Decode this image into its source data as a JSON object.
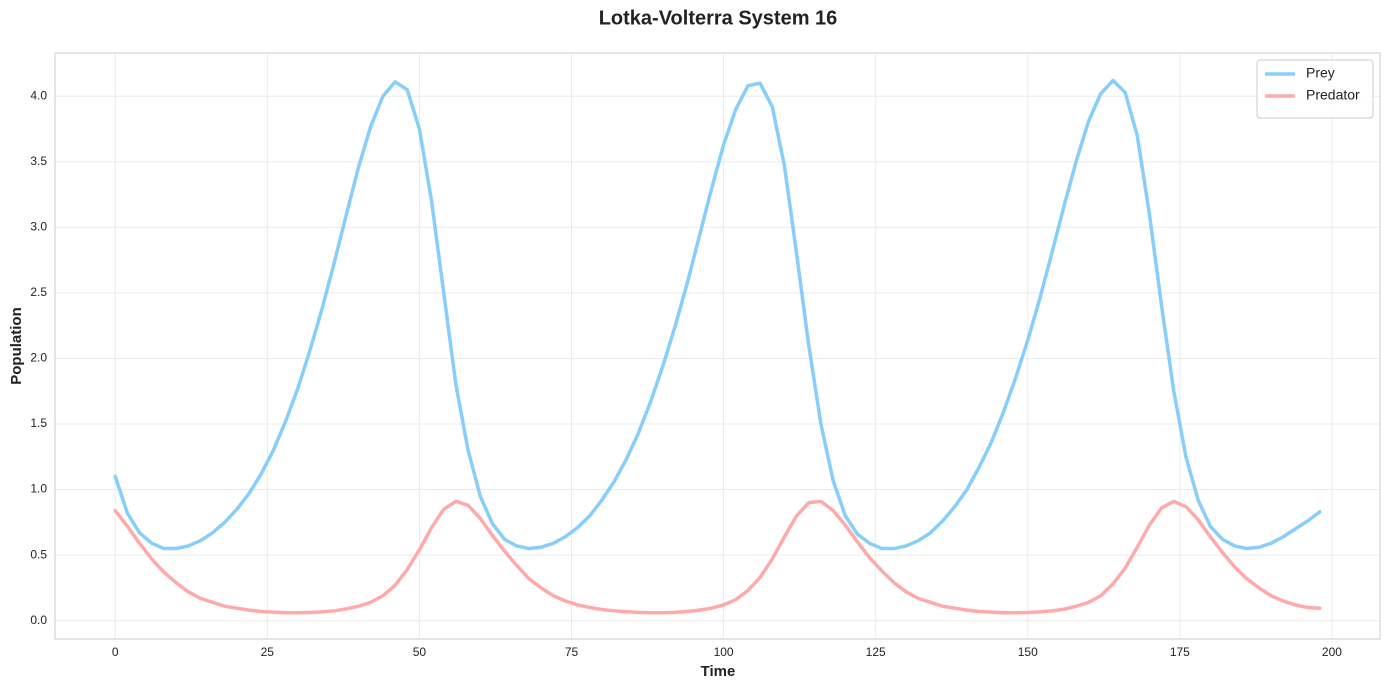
{
  "chart_data": {
    "type": "line",
    "title": "Lotka-Volterra System 16",
    "xlabel": "Time",
    "ylabel": "Population",
    "x": [
      0,
      2,
      4,
      6,
      8,
      10,
      12,
      14,
      16,
      18,
      20,
      22,
      24,
      26,
      28,
      30,
      32,
      34,
      36,
      38,
      40,
      42,
      44,
      46,
      48,
      50,
      52,
      54,
      56,
      58,
      60,
      62,
      64,
      66,
      68,
      70,
      72,
      74,
      76,
      78,
      80,
      82,
      84,
      86,
      88,
      90,
      92,
      94,
      96,
      98,
      100,
      102,
      104,
      106,
      108,
      110,
      112,
      114,
      116,
      118,
      120,
      122,
      124,
      126,
      128,
      130,
      132,
      134,
      136,
      138,
      140,
      142,
      144,
      146,
      148,
      150,
      152,
      154,
      156,
      158,
      160,
      162,
      164,
      166,
      168,
      170,
      172,
      174,
      176,
      178,
      180,
      182,
      184,
      186,
      188,
      190,
      192,
      194,
      196,
      198
    ],
    "series": [
      {
        "name": "Prey",
        "color": "#87cefa",
        "values": [
          1.1,
          0.82,
          0.67,
          0.59,
          0.55,
          0.55,
          0.57,
          0.61,
          0.67,
          0.75,
          0.85,
          0.97,
          1.12,
          1.3,
          1.52,
          1.77,
          2.06,
          2.38,
          2.73,
          3.1,
          3.46,
          3.77,
          4.0,
          4.11,
          4.05,
          3.75,
          3.2,
          2.5,
          1.8,
          1.3,
          0.95,
          0.74,
          0.62,
          0.57,
          0.55,
          0.56,
          0.59,
          0.64,
          0.71,
          0.8,
          0.92,
          1.06,
          1.23,
          1.43,
          1.67,
          1.94,
          2.24,
          2.57,
          2.93,
          3.29,
          3.63,
          3.9,
          4.08,
          4.1,
          3.92,
          3.47,
          2.8,
          2.1,
          1.5,
          1.07,
          0.8,
          0.66,
          0.59,
          0.55,
          0.55,
          0.57,
          0.61,
          0.67,
          0.76,
          0.87,
          1.0,
          1.17,
          1.36,
          1.59,
          1.85,
          2.14,
          2.46,
          2.81,
          3.17,
          3.51,
          3.81,
          4.02,
          4.12,
          4.03,
          3.7,
          3.1,
          2.4,
          1.75,
          1.25,
          0.92,
          0.72,
          0.62,
          0.57,
          0.55,
          0.56,
          0.59,
          0.64,
          0.7,
          0.76,
          0.83
        ]
      },
      {
        "name": "Predator",
        "color": "#ffaaaa",
        "values": [
          0.84,
          0.72,
          0.59,
          0.47,
          0.37,
          0.29,
          0.22,
          0.17,
          0.14,
          0.11,
          0.095,
          0.08,
          0.07,
          0.065,
          0.06,
          0.06,
          0.062,
          0.067,
          0.075,
          0.09,
          0.11,
          0.14,
          0.19,
          0.27,
          0.39,
          0.54,
          0.71,
          0.85,
          0.91,
          0.88,
          0.78,
          0.65,
          0.53,
          0.42,
          0.32,
          0.25,
          0.19,
          0.15,
          0.12,
          0.1,
          0.085,
          0.075,
          0.068,
          0.063,
          0.06,
          0.06,
          0.063,
          0.07,
          0.08,
          0.095,
          0.12,
          0.16,
          0.23,
          0.33,
          0.47,
          0.64,
          0.8,
          0.9,
          0.91,
          0.84,
          0.73,
          0.6,
          0.48,
          0.38,
          0.29,
          0.22,
          0.17,
          0.14,
          0.11,
          0.095,
          0.08,
          0.07,
          0.065,
          0.06,
          0.06,
          0.062,
          0.067,
          0.075,
          0.088,
          0.11,
          0.14,
          0.19,
          0.28,
          0.4,
          0.56,
          0.73,
          0.86,
          0.91,
          0.87,
          0.77,
          0.64,
          0.52,
          0.41,
          0.32,
          0.25,
          0.19,
          0.15,
          0.12,
          0.1,
          0.095
        ]
      }
    ],
    "xlim": [
      -9.9,
      207.9
    ],
    "ylim": [
      -0.14,
      4.33
    ],
    "xticks": [
      0,
      25,
      50,
      75,
      100,
      125,
      150,
      175,
      200
    ],
    "yticks": [
      {
        "value": 0,
        "label": "0.0"
      },
      0.5,
      {
        "value": 1,
        "label": "1.0"
      },
      1.5,
      {
        "value": 2,
        "label": "2.0"
      },
      2.5,
      {
        "value": 3,
        "label": "3.0"
      },
      3.5,
      {
        "value": 4,
        "label": "4.0"
      }
    ],
    "grid": true,
    "legend": "upper right"
  }
}
